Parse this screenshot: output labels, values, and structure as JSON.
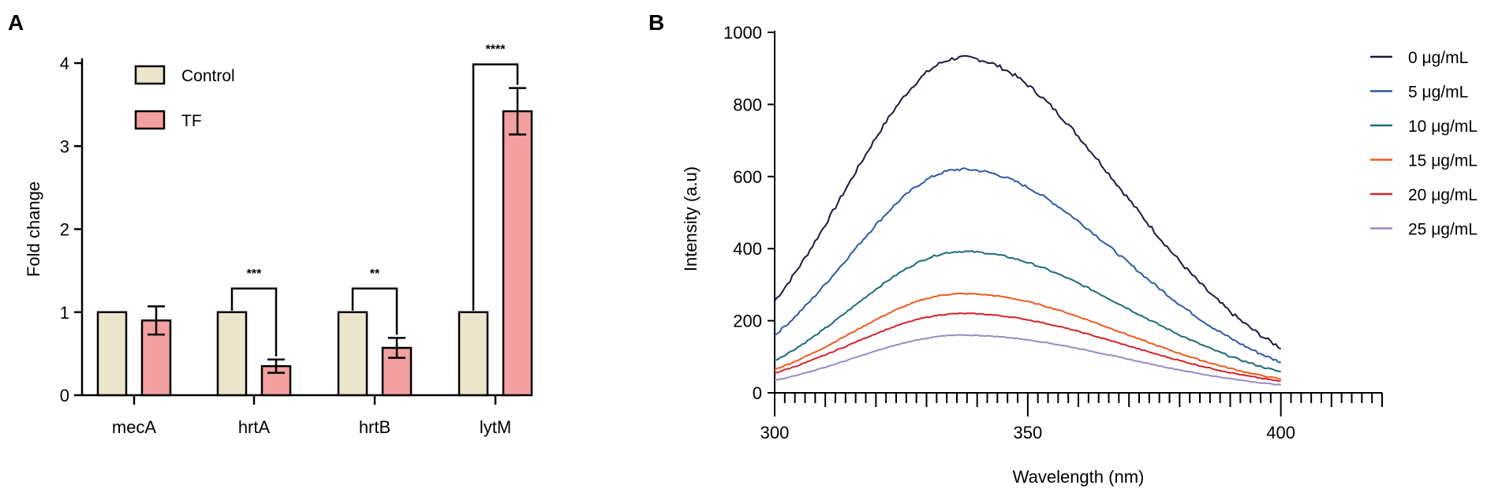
{
  "chart_data": [
    {
      "panel": "A",
      "type": "bar",
      "ylabel": "Fold change",
      "xlabel": "",
      "ylim": [
        0,
        4
      ],
      "yticks": [
        "0",
        "1",
        "2",
        "3",
        "4"
      ],
      "categories": [
        "mecA",
        "hrtA",
        "hrtB",
        "lytM"
      ],
      "series": [
        {
          "name": "Control",
          "color": "#ebe5cb",
          "values": [
            1,
            1,
            1,
            1
          ],
          "errors": [
            0,
            0,
            0,
            0
          ]
        },
        {
          "name": "TF",
          "color": "#f2a1a0",
          "values": [
            0.9,
            0.35,
            0.57,
            3.42
          ],
          "errors": [
            0.17,
            0.08,
            0.12,
            0.28
          ]
        }
      ],
      "significance": [
        {
          "category": "hrtA",
          "label": "***"
        },
        {
          "category": "hrtB",
          "label": "**"
        },
        {
          "category": "lytM",
          "label": "****"
        }
      ],
      "legend": [
        "Control",
        "TF"
      ]
    },
    {
      "panel": "B",
      "type": "line",
      "xlabel": "Wavelength (nm)",
      "ylabel": "Intensity (a.u)",
      "xlim": [
        300,
        420
      ],
      "ylim": [
        0,
        1000
      ],
      "xticks": [
        "300",
        "350",
        "400"
      ],
      "yticks": [
        "0",
        "200",
        "400",
        "600",
        "800",
        "1000"
      ],
      "x_range": [
        300,
        400
      ],
      "peak_wavelength": 337,
      "series": [
        {
          "name": "0 μg/mL",
          "color": "#1c1a3e",
          "start": 255,
          "peak": 930,
          "end": 125
        },
        {
          "name": "5 μg/mL",
          "color": "#2b5ba5",
          "start": 160,
          "peak": 620,
          "end": 85
        },
        {
          "name": "10 μg/mL",
          "color": "#1c6b7a",
          "start": 90,
          "peak": 392,
          "end": 58
        },
        {
          "name": "15 μg/mL",
          "color": "#ee5a1e",
          "start": 65,
          "peak": 275,
          "end": 38
        },
        {
          "name": "20 μg/mL",
          "color": "#d3222a",
          "start": 55,
          "peak": 220,
          "end": 32
        },
        {
          "name": "25 μg/mL",
          "color": "#9a88c4",
          "start": 35,
          "peak": 160,
          "end": 22
        }
      ],
      "legend": [
        "0 μg/mL",
        "5 μg/mL",
        "10 μg/mL",
        "15 μg/mL",
        "20 μg/mL",
        "25 μg/mL"
      ]
    }
  ]
}
